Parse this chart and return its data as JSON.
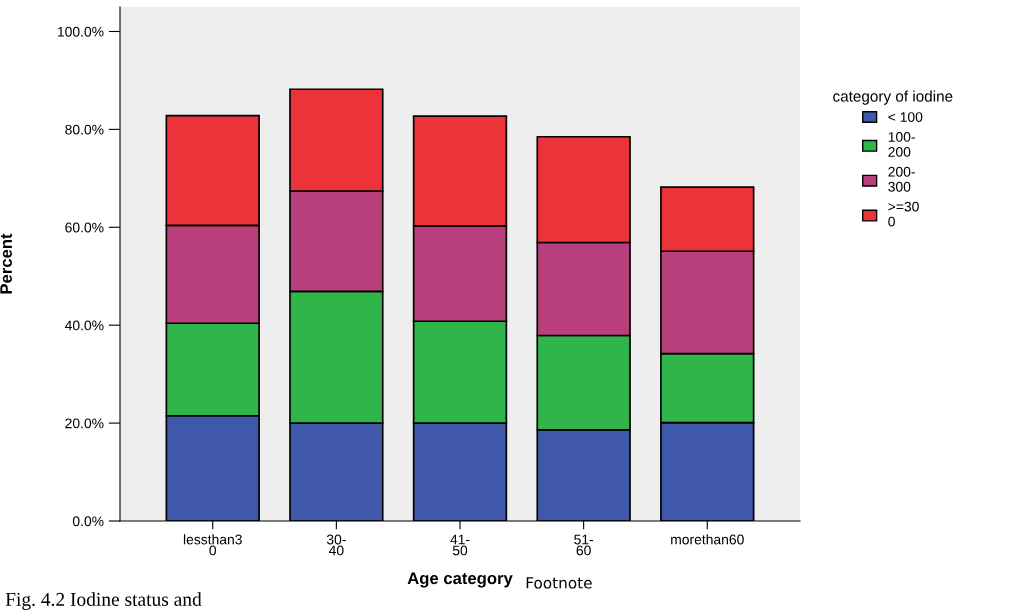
{
  "chart_data": {
    "type": "bar",
    "stacked": true,
    "xlabel": "Age category",
    "ylabel": "Percent",
    "legend_title": "category of iodine",
    "legend": "right",
    "grid": false,
    "categories": [
      "lessthan3\n0",
      "30-\n40",
      "41-\n50",
      "51-\n60",
      "morethan60"
    ],
    "series": [
      {
        "name": "< 100",
        "color": "#3f58aa",
        "values": [
          21.5,
          20.0,
          20.0,
          18.6,
          20.1
        ]
      },
      {
        "name": "100-\n200",
        "color": "#30b54a",
        "values": [
          18.9,
          26.9,
          20.8,
          19.3,
          14.1
        ]
      },
      {
        "name": "200-\n300",
        "color": "#b93f7c",
        "values": [
          20.0,
          20.5,
          19.5,
          19.0,
          20.9
        ]
      },
      {
        "name": ">=30\n0",
        "color": "#ec333a",
        "values": [
          22.4,
          20.8,
          22.4,
          21.6,
          13.1
        ]
      }
    ],
    "ylim": [
      0,
      105
    ],
    "yticks": [
      {
        "value": 0,
        "label": "0.0%"
      },
      {
        "value": 20,
        "label": "20.0%"
      },
      {
        "value": 40,
        "label": "40.0%"
      },
      {
        "value": 60,
        "label": "60.0%"
      },
      {
        "value": 80,
        "label": "80.0%"
      },
      {
        "value": 100,
        "label": "100.0%"
      }
    ],
    "annotations": [
      "Footnote",
      "Fig. 4.2 Iodine status and"
    ]
  }
}
